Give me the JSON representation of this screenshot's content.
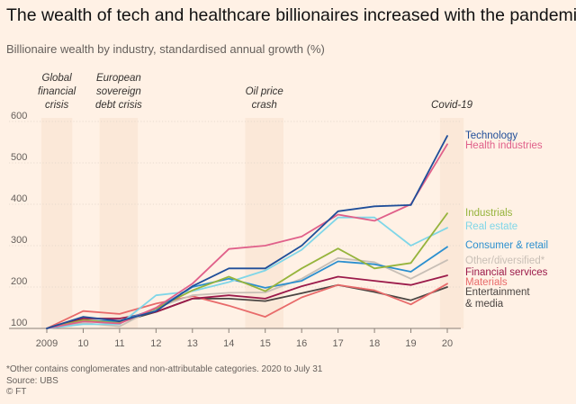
{
  "header": {
    "title": "The wealth of tech and healthcare billionaires increased with the pandemic",
    "subtitle": "Billionaire wealth by industry, standardised annual growth (%)"
  },
  "footer": {
    "note": "*Other contains conglomerates and non-attributable categories. 2020 to July 31",
    "source": "Source: UBS",
    "credit": "© FT"
  },
  "colors": {
    "background": "#fff1e5",
    "shade": "#fbe8d8",
    "grid": "#e0d4c8"
  },
  "chart_data": {
    "type": "line",
    "x": [
      2009,
      2010,
      2011,
      2012,
      2013,
      2014,
      2015,
      2016,
      2017,
      2018,
      2019,
      2020
    ],
    "x_tick_labels": [
      "2009",
      "10",
      "11",
      "12",
      "13",
      "14",
      "15",
      "16",
      "17",
      "18",
      "19",
      "20"
    ],
    "y_ticks": [
      100,
      200,
      300,
      400,
      500,
      600
    ],
    "ylim": [
      100,
      600
    ],
    "grid": true,
    "events": [
      {
        "label": [
          "Global",
          "financial",
          "crisis"
        ],
        "from": 2008.85,
        "to": 2009.7
      },
      {
        "label": [
          "European",
          "sovereign",
          "debt crisis"
        ],
        "from": 2010.45,
        "to": 2011.5
      },
      {
        "label": [
          "Oil price",
          "crash"
        ],
        "from": 2014.45,
        "to": 2015.5
      },
      {
        "label": [
          "Covid-19"
        ],
        "from": 2019.8,
        "to": 2020.45
      }
    ],
    "series": [
      {
        "name": "Technology",
        "color": "#1f4e99",
        "values": [
          100,
          128,
          118,
          142,
          202,
          245,
          245,
          300,
          383,
          395,
          398,
          565
        ]
      },
      {
        "name": "Health industries",
        "color": "#e0608a",
        "values": [
          100,
          117,
          112,
          150,
          208,
          292,
          300,
          322,
          375,
          360,
          400,
          545
        ]
      },
      {
        "name": "Industrials",
        "color": "#96b43c",
        "values": [
          100,
          120,
          113,
          148,
          192,
          225,
          190,
          245,
          293,
          245,
          258,
          378
        ]
      },
      {
        "name": "Real estate",
        "color": "#7fd6e8",
        "values": [
          100,
          110,
          110,
          180,
          190,
          212,
          240,
          290,
          368,
          368,
          300,
          343
        ]
      },
      {
        "name": "Consumer & retail",
        "color": "#2b8fcf",
        "values": [
          100,
          118,
          118,
          147,
          200,
          220,
          198,
          215,
          262,
          255,
          237,
          297
        ]
      },
      {
        "name": "Other/diversified*",
        "color": "#c8bfb6",
        "values": [
          100,
          113,
          105,
          150,
          180,
          186,
          187,
          220,
          270,
          260,
          220,
          265
        ]
      },
      {
        "name": "Financial services",
        "color": "#9b1a4a",
        "values": [
          100,
          124,
          124,
          140,
          172,
          180,
          172,
          202,
          225,
          215,
          205,
          228
        ]
      },
      {
        "name": "Materials",
        "color": "#e86a6a",
        "values": [
          100,
          142,
          135,
          160,
          178,
          155,
          128,
          175,
          205,
          192,
          158,
          208
        ]
      },
      {
        "name": "Entertainment & media",
        "color": "#4a4542",
        "values": [
          100,
          120,
          115,
          140,
          172,
          172,
          166,
          185,
          205,
          188,
          168,
          200
        ]
      }
    ],
    "labels": [
      {
        "text": [
          "Technology"
        ],
        "series": "Technology"
      },
      {
        "text": [
          "Health industries"
        ],
        "series": "Health industries"
      },
      {
        "text": [
          "Industrials"
        ],
        "series": "Industrials"
      },
      {
        "text": [
          "Real estate"
        ],
        "series": "Real estate"
      },
      {
        "text": [
          "Consumer & retail"
        ],
        "series": "Consumer & retail"
      },
      {
        "text": [
          "Other/diversified*"
        ],
        "series": "Other/diversified*"
      },
      {
        "text": [
          "Financial services"
        ],
        "series": "Financial services"
      },
      {
        "text": [
          "Materials"
        ],
        "series": "Materials"
      },
      {
        "text": [
          "Entertainment",
          "& media"
        ],
        "series": "Entertainment & media"
      }
    ]
  }
}
